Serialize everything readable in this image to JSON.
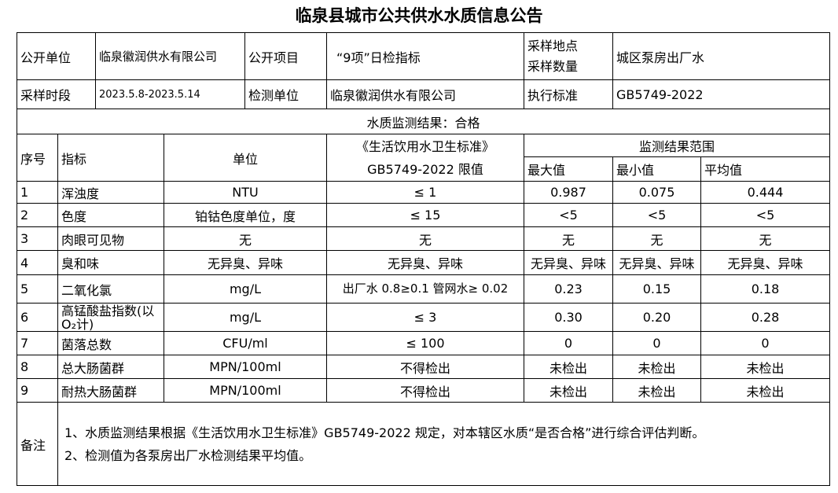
{
  "title": "临泉县城市公共供水水质信息公告",
  "info": {
    "publisher_label": "公开单位",
    "publisher": "临泉徽润供水有限公司",
    "item_label": "公开项目",
    "item": "“9项”日检指标",
    "location_label_1": "采样地点",
    "location_label_2": "采样数量",
    "location": "城区泵房出厂水",
    "period_label": "采样时段",
    "period": "2023.5.8-2023.5.14",
    "lab_label": "检测单位",
    "lab": "临泉徽润供水有限公司",
    "standard_label": "执行标准",
    "standard": "GB5749-2022"
  },
  "result": "水质监测结果：合格",
  "headers": {
    "no": "序号",
    "indicator": "指标",
    "unit": "单位",
    "limit_1": "《生活饮用水卫生标准》",
    "limit_2": "GB5749-2022 限值",
    "range": "监测结果范围",
    "max": "最大值",
    "min": "最小值",
    "avg": "平均值"
  },
  "rows": [
    {
      "no": "1",
      "indicator": "浑浊度",
      "unit": "NTU",
      "limit": "≤ 1",
      "max": "0.987",
      "min": "0.075",
      "avg": "0.444"
    },
    {
      "no": "2",
      "indicator": "色度",
      "unit": "铂钴色度单位，度",
      "limit": "≤ 15",
      "max": "<5",
      "min": "<5",
      "avg": "<5"
    },
    {
      "no": "3",
      "indicator": "肉眼可见物",
      "unit": "无",
      "limit": "无",
      "max": "无",
      "min": "无",
      "avg": "无"
    },
    {
      "no": "4",
      "indicator": "臭和味",
      "unit": "无异臭、异味",
      "limit": "无异臭、异味",
      "max": "无异臭、异味",
      "min": "无异臭、异味",
      "avg": "无异臭、异味"
    },
    {
      "no": "5",
      "indicator": "二氧化氯",
      "unit": "mg/L",
      "limit": "出厂水 0.8≥0.1 管网水≥ 0.02",
      "max": "0.23",
      "min": "0.15",
      "avg": "0.18"
    },
    {
      "no": "6",
      "indicator": "高锰酸盐指数(以O₂计)",
      "unit": "mg/L",
      "limit": "≤ 3",
      "max": "0.30",
      "min": "0.20",
      "avg": "0.28"
    },
    {
      "no": "7",
      "indicator": "菌落总数",
      "unit": "CFU/ml",
      "limit": "≤ 100",
      "max": "0",
      "min": "0",
      "avg": "0"
    },
    {
      "no": "8",
      "indicator": "总大肠菌群",
      "unit": "MPN/100ml",
      "limit": "不得检出",
      "max": "未检出",
      "min": "未检出",
      "avg": "未检出"
    },
    {
      "no": "9",
      "indicator": "耐热大肠菌群",
      "unit": "MPN/100ml",
      "limit": "不得检出",
      "max": "未检出",
      "min": "未检出",
      "avg": "未检出"
    }
  ],
  "notes": {
    "label": "备注",
    "line1": "1、水质监测结果根据《生活饮用水卫生标准》GB5749-2022 规定，对本辖区水质“是否合格”进行综合评估判断。",
    "line2": "2、检测值为各泵房出厂水检测结果平均值。"
  }
}
